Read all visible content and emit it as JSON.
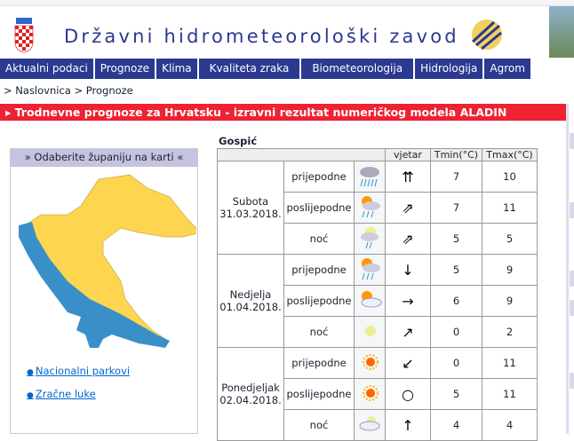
{
  "header": {
    "title": "Državni hidrometeorološki zavod"
  },
  "nav": [
    "Aktualni podaci",
    "Prognoze",
    "Klima",
    "Kvaliteta zraka",
    "Biometeorologija",
    "Hidrologija",
    "Agrom"
  ],
  "breadcrumb": "> Naslovnica > Prognoze",
  "banner": "Trodnevne prognoze za Hrvatsku - izravni rezultat numeričkog modela ALADIN",
  "map_panel": {
    "title": "» Odaberite županiju na karti «",
    "links": [
      "Nacionalni parkovi",
      "Zračne luke"
    ]
  },
  "forecast": {
    "city": "Gospić",
    "headers": {
      "wind": "vjetar",
      "tmin": "Tmin(°C)",
      "tmax": "Tmax(°C)"
    },
    "days": [
      {
        "day": "Subota",
        "date": "31.03.2018.",
        "rows": [
          {
            "period": "prijepodne",
            "icon": "rain-cloud",
            "wind": "⇈",
            "tmin": "7",
            "tmax": "10"
          },
          {
            "period": "poslijepodne",
            "icon": "sun-cloud-rain",
            "wind": "⇗",
            "tmin": "7",
            "tmax": "11"
          },
          {
            "period": "noć",
            "icon": "moon-cloud-rain",
            "wind": "⇗",
            "tmin": "5",
            "tmax": "5"
          }
        ]
      },
      {
        "day": "Nedjelja",
        "date": "01.04.2018.",
        "rows": [
          {
            "period": "prijepodne",
            "icon": "sun-cloud-rain",
            "wind": "↓",
            "tmin": "5",
            "tmax": "9"
          },
          {
            "period": "poslijepodne",
            "icon": "sun-cloud",
            "wind": "→",
            "tmin": "6",
            "tmax": "9"
          },
          {
            "period": "noć",
            "icon": "moon",
            "wind": "↗",
            "tmin": "0",
            "tmax": "2"
          }
        ]
      },
      {
        "day": "Ponedjeljak",
        "date": "02.04.2018.",
        "rows": [
          {
            "period": "prijepodne",
            "icon": "sun",
            "wind": "↙",
            "tmin": "0",
            "tmax": "11"
          },
          {
            "period": "poslijepodne",
            "icon": "sun",
            "wind": "○",
            "tmin": "5",
            "tmax": "11"
          },
          {
            "period": "noć",
            "icon": "moon-cloud",
            "wind": "↑",
            "tmin": "4",
            "tmax": "4"
          }
        ]
      }
    ]
  }
}
